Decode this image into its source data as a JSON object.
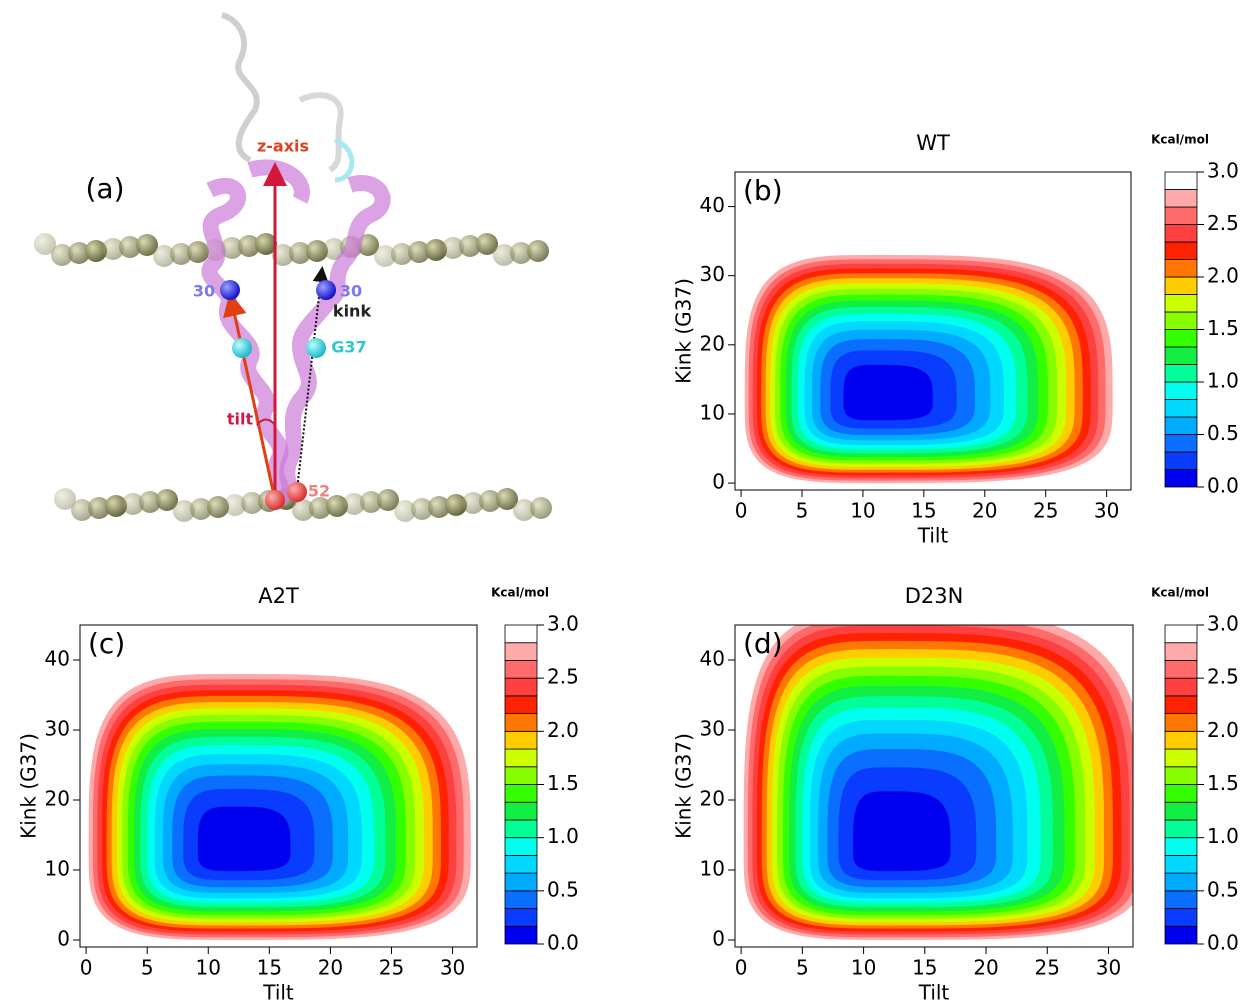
{
  "panel_a": {
    "label": "(a)",
    "z_axis": "z-axis",
    "res_left": "30",
    "res_right": "30",
    "kink": "kink",
    "g37": "G37",
    "tilt": "tilt",
    "res_bottom": "52"
  },
  "chart_data": [
    {
      "type": "contour",
      "title": "WT",
      "panel_label": "(b)",
      "x_label": "Tilt",
      "y_label": "Kink (G37)",
      "colorbar_label": "Kcal/mol",
      "xlim": [
        -0.5,
        32
      ],
      "ylim": [
        -1,
        45
      ],
      "xticks": [
        0,
        5,
        10,
        15,
        20,
        25,
        30
      ],
      "yticks": [
        0,
        10,
        20,
        30,
        40
      ],
      "zlim": [
        0,
        3
      ],
      "zticks": [
        {
          "value": 0,
          "label": "0.0"
        },
        0.5,
        {
          "value": 1,
          "label": "1.0"
        },
        1.5,
        {
          "value": 2,
          "label": "2.0"
        },
        2.5,
        {
          "value": 3,
          "label": "3.0"
        }
      ],
      "colors": [
        "#0000f0",
        "#0a3cff",
        "#0a6eff",
        "#00aaff",
        "#00d8ff",
        "#00ffee",
        "#00ff99",
        "#11ee44",
        "#33ff00",
        "#88ff00",
        "#ccff00",
        "#ffcc00",
        "#ff7700",
        "#ff2200",
        "#ff4040",
        "#ff6a6a",
        "#ffaaaa",
        "#ffffff"
      ],
      "center": [
        11,
        12
      ],
      "extent": {
        "x": [
          0.3,
          30.5
        ],
        "y": [
          0,
          33
        ]
      }
    },
    {
      "type": "contour",
      "title": "A2T",
      "panel_label": "(c)",
      "x_label": "Tilt",
      "y_label": "Kink (G37)",
      "colorbar_label": "Kcal/mol",
      "xlim": [
        -0.5,
        32
      ],
      "ylim": [
        -1,
        45
      ],
      "xticks": [
        0,
        5,
        10,
        15,
        20,
        25,
        30
      ],
      "yticks": [
        0,
        10,
        20,
        30,
        40
      ],
      "zlim": [
        0,
        3
      ],
      "zticks": [
        {
          "value": 0,
          "label": "0.0"
        },
        0.5,
        {
          "value": 1,
          "label": "1.0"
        },
        1.5,
        {
          "value": 2,
          "label": "2.0"
        },
        2.5,
        {
          "value": 3,
          "label": "3.0"
        }
      ],
      "colors": [
        "#0000f0",
        "#0a3cff",
        "#0a6eff",
        "#00aaff",
        "#00d8ff",
        "#00ffee",
        "#00ff99",
        "#11ee44",
        "#33ff00",
        "#88ff00",
        "#ccff00",
        "#ffcc00",
        "#ff7700",
        "#ff2200",
        "#ff4040",
        "#ff6a6a",
        "#ffaaaa",
        "#ffffff"
      ],
      "center": [
        12,
        13
      ],
      "extent": {
        "x": [
          0.2,
          31.5
        ],
        "y": [
          0,
          38
        ]
      }
    },
    {
      "type": "contour",
      "title": "D23N",
      "panel_label": "(d)",
      "x_label": "Tilt",
      "y_label": "Kink (G37)",
      "colorbar_label": "Kcal/mol",
      "xlim": [
        -0.5,
        32
      ],
      "ylim": [
        -1,
        45
      ],
      "xticks": [
        0,
        5,
        10,
        15,
        20,
        25,
        30
      ],
      "yticks": [
        0,
        10,
        20,
        30,
        40
      ],
      "zlim": [
        0,
        3
      ],
      "zticks": [
        {
          "value": 0,
          "label": "0.0"
        },
        0.5,
        {
          "value": 1,
          "label": "1.0"
        },
        1.5,
        {
          "value": 2,
          "label": "2.0"
        },
        2.5,
        {
          "value": 3,
          "label": "3.0"
        }
      ],
      "colors": [
        "#0000f0",
        "#0a3cff",
        "#0a6eff",
        "#00aaff",
        "#00d8ff",
        "#00ffee",
        "#00ff99",
        "#11ee44",
        "#33ff00",
        "#88ff00",
        "#ccff00",
        "#ffcc00",
        "#ff7700",
        "#ff2200",
        "#ff4040",
        "#ff6a6a",
        "#ffaaaa",
        "#ffffff"
      ],
      "center": [
        12,
        13
      ],
      "extent": {
        "x": [
          0.2,
          33
        ],
        "y": [
          0,
          47
        ]
      }
    }
  ]
}
